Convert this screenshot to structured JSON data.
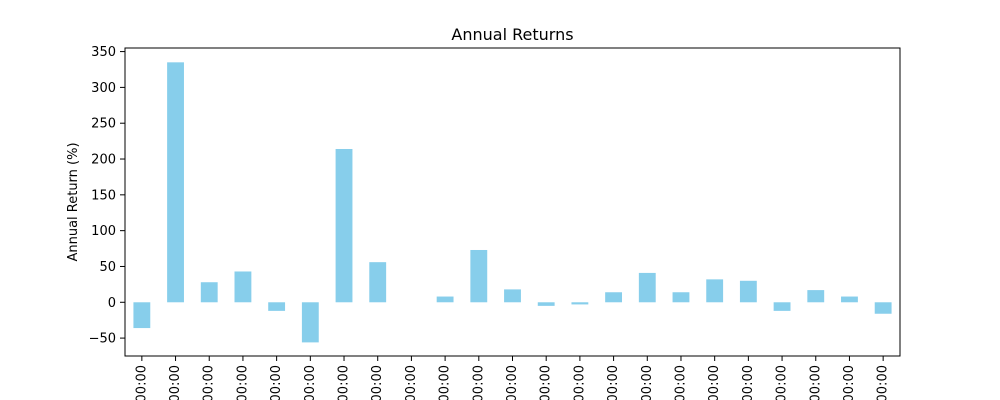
{
  "chart_data": {
    "type": "bar",
    "title": "Annual Returns",
    "xlabel": "",
    "ylabel": "Annual Return (%)",
    "ylim": [
      -75,
      355
    ],
    "yticks": [
      -50,
      0,
      50,
      100,
      150,
      200,
      250,
      300,
      350
    ],
    "categories": [
      "00:00",
      "00:00",
      "00:00",
      "00:00",
      "00:00",
      "00:00",
      "00:00",
      "00:00",
      "00:00",
      "00:00",
      "00:00",
      "00:00",
      "00:00",
      "00:00",
      "00:00",
      "00:00",
      "00:00",
      "00:00",
      "00:00",
      "00:00",
      "00:00",
      "00:00",
      "00:00"
    ],
    "values": [
      -36,
      335,
      28,
      43,
      -12,
      -56,
      214,
      56,
      0,
      8,
      73,
      18,
      -5,
      -3,
      14,
      41,
      14,
      32,
      30,
      -12,
      17,
      8,
      -16
    ],
    "bar_color": "#87ceeb",
    "grid": false,
    "legend": false
  }
}
